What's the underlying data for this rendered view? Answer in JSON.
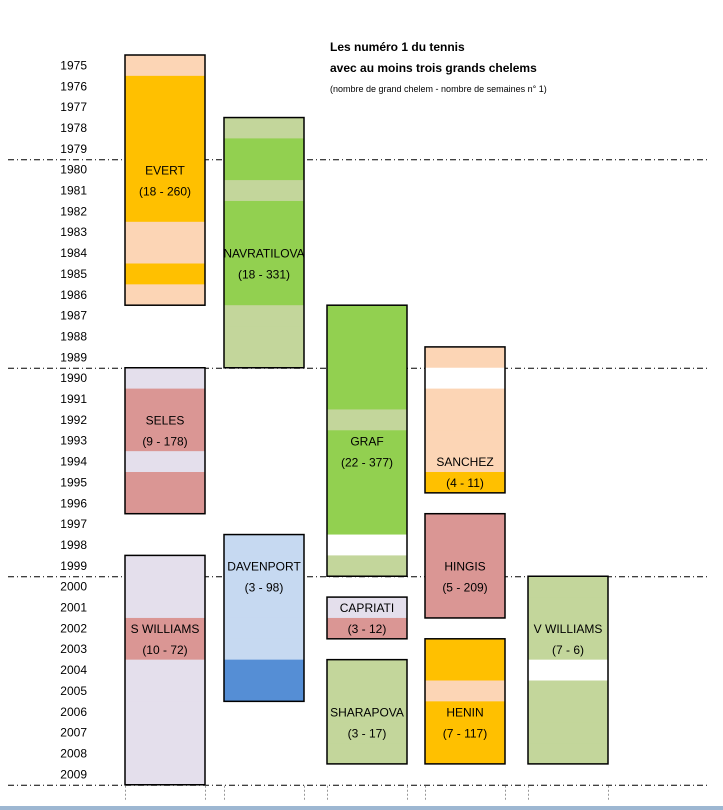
{
  "chart_data": {
    "type": "bar",
    "title": "Les numéro 1 du tennis",
    "subtitle": "avec au moins trois grands chelems",
    "note": "(nombre de grand chelem - nombre de semaines n° 1)",
    "years": [
      "1975",
      "1976",
      "1977",
      "1978",
      "1979",
      "1980",
      "1981",
      "1982",
      "1983",
      "1984",
      "1985",
      "1986",
      "1987",
      "1988",
      "1989",
      "1990",
      "1991",
      "1992",
      "1993",
      "1994",
      "1995",
      "1996",
      "1997",
      "1998",
      "1999",
      "2000",
      "2001",
      "2002",
      "2003",
      "2004",
      "2005",
      "2006",
      "2007",
      "2008",
      "2009"
    ],
    "decade_lines_after": [
      1979,
      1989,
      1999,
      2009
    ],
    "players": [
      {
        "name": "EVERT",
        "label": "(18 - 260)",
        "column": 0,
        "start": 1975,
        "end": 1986,
        "label_year": 1980,
        "segments": [
          {
            "year": 1975,
            "status": "light"
          },
          {
            "year": 1976,
            "status": "main"
          },
          {
            "year": 1977,
            "status": "main"
          },
          {
            "year": 1978,
            "status": "main"
          },
          {
            "year": 1979,
            "status": "main"
          },
          {
            "year": 1980,
            "status": "main"
          },
          {
            "year": 1981,
            "status": "main"
          },
          {
            "year": 1982,
            "status": "main"
          },
          {
            "year": 1983,
            "status": "light"
          },
          {
            "year": 1984,
            "status": "light"
          },
          {
            "year": 1985,
            "status": "main"
          },
          {
            "year": 1986,
            "status": "light"
          }
        ],
        "colors": {
          "main": "#ffc000",
          "light": "#fcd5b5"
        }
      },
      {
        "name": "NAVRATILOVA",
        "label": "(18 - 331)",
        "column": 1,
        "start": 1978,
        "end": 1989,
        "label_year": 1984,
        "segments": [
          {
            "year": 1978,
            "status": "light"
          },
          {
            "year": 1979,
            "status": "main"
          },
          {
            "year": 1980,
            "status": "main"
          },
          {
            "year": 1981,
            "status": "light"
          },
          {
            "year": 1982,
            "status": "main"
          },
          {
            "year": 1983,
            "status": "main"
          },
          {
            "year": 1984,
            "status": "main"
          },
          {
            "year": 1985,
            "status": "main"
          },
          {
            "year": 1986,
            "status": "main"
          },
          {
            "year": 1987,
            "status": "light"
          },
          {
            "year": 1988,
            "status": "light"
          },
          {
            "year": 1989,
            "status": "light"
          }
        ],
        "colors": {
          "main": "#92d050",
          "light": "#c3d69b"
        }
      },
      {
        "name": "GRAF",
        "label": "(22 - 377)",
        "column": 2,
        "start": 1987,
        "end": 1999,
        "label_year": 1993,
        "segments": [
          {
            "year": 1987,
            "status": "main"
          },
          {
            "year": 1988,
            "status": "main"
          },
          {
            "year": 1989,
            "status": "main"
          },
          {
            "year": 1990,
            "status": "main"
          },
          {
            "year": 1991,
            "status": "main"
          },
          {
            "year": 1992,
            "status": "light"
          },
          {
            "year": 1993,
            "status": "main"
          },
          {
            "year": 1994,
            "status": "main"
          },
          {
            "year": 1995,
            "status": "main"
          },
          {
            "year": 1996,
            "status": "main"
          },
          {
            "year": 1997,
            "status": "main"
          },
          {
            "year": 1998,
            "status": "none"
          },
          {
            "year": 1999,
            "status": "light"
          }
        ],
        "colors": {
          "main": "#92d050",
          "light": "#c3d69b"
        }
      },
      {
        "name": "SANCHEZ",
        "label": "(4 - 11)",
        "column": 3,
        "start": 1989,
        "end": 1995,
        "label_year": 1994,
        "segments": [
          {
            "year": 1989,
            "status": "light"
          },
          {
            "year": 1990,
            "status": "none"
          },
          {
            "year": 1991,
            "status": "light"
          },
          {
            "year": 1992,
            "status": "light"
          },
          {
            "year": 1993,
            "status": "light"
          },
          {
            "year": 1994,
            "status": "light"
          },
          {
            "year": 1995,
            "status": "main"
          }
        ],
        "colors": {
          "main": "#ffc000",
          "light": "#fcd5b5"
        }
      },
      {
        "name": "SELES",
        "label": "(9  - 178)",
        "column": 0,
        "start": 1990,
        "end": 1996,
        "label_year": 1992,
        "segments": [
          {
            "year": 1990,
            "status": "light"
          },
          {
            "year": 1991,
            "status": "main"
          },
          {
            "year": 1992,
            "status": "main"
          },
          {
            "year": 1993,
            "status": "main"
          },
          {
            "year": 1994,
            "status": "light"
          },
          {
            "year": 1995,
            "status": "main"
          },
          {
            "year": 1996,
            "status": "main"
          }
        ],
        "colors": {
          "main": "#da9694",
          "light": "#e4dfec"
        }
      },
      {
        "name": "DAVENPORT",
        "label": "(3 - 98)",
        "column": 1,
        "start": 1998,
        "end": 2005,
        "label_year": 1999,
        "segments": [
          {
            "year": 1998,
            "status": "light"
          },
          {
            "year": 1999,
            "status": "light"
          },
          {
            "year": 2000,
            "status": "light"
          },
          {
            "year": 2001,
            "status": "light"
          },
          {
            "year": 2002,
            "status": "light"
          },
          {
            "year": 2003,
            "status": "light"
          },
          {
            "year": 2004,
            "status": "main"
          },
          {
            "year": 2005,
            "status": "main"
          }
        ],
        "colors": {
          "main": "#558ed5",
          "light": "#c6d9f1"
        }
      },
      {
        "name": "HINGIS",
        "label": "(5 - 209)",
        "column": 3,
        "start": 1997,
        "end": 2001,
        "label_year": 1999,
        "segments": [
          {
            "year": 1997,
            "status": "main"
          },
          {
            "year": 1998,
            "status": "main"
          },
          {
            "year": 1999,
            "status": "main"
          },
          {
            "year": 2000,
            "status": "main"
          },
          {
            "year": 2001,
            "status": "main"
          }
        ],
        "colors": {
          "main": "#da9694",
          "light": "#e4dfec"
        }
      },
      {
        "name": "S WILLIAMS",
        "label": "(10 - 72)",
        "column": 0,
        "start": 1999,
        "end": 2009,
        "label_year": 2002,
        "segments": [
          {
            "year": 1999,
            "status": "light"
          },
          {
            "year": 2000,
            "status": "light"
          },
          {
            "year": 2001,
            "status": "light"
          },
          {
            "year": 2002,
            "status": "main"
          },
          {
            "year": 2003,
            "status": "main"
          },
          {
            "year": 2004,
            "status": "light"
          },
          {
            "year": 2005,
            "status": "light"
          },
          {
            "year": 2006,
            "status": "light"
          },
          {
            "year": 2007,
            "status": "light"
          },
          {
            "year": 2008,
            "status": "light"
          },
          {
            "year": 2009,
            "status": "light"
          }
        ],
        "colors": {
          "main": "#da9694",
          "light": "#e4dfec"
        }
      },
      {
        "name": "CAPRIATI",
        "label": "(3 - 12)",
        "column": 2,
        "start": 2001,
        "end": 2002,
        "label_year": 2001,
        "segments": [
          {
            "year": 2001,
            "status": "light"
          },
          {
            "year": 2002,
            "status": "main"
          }
        ],
        "colors": {
          "main": "#da9694",
          "light": "#e4dfec"
        }
      },
      {
        "name": "SHARAPOVA",
        "label": "(3 - 17)",
        "column": 2,
        "start": 2004,
        "end": 2008,
        "label_year": 2006,
        "segments": [
          {
            "year": 2004,
            "status": "light"
          },
          {
            "year": 2005,
            "status": "light"
          },
          {
            "year": 2006,
            "status": "light"
          },
          {
            "year": 2007,
            "status": "light"
          },
          {
            "year": 2008,
            "status": "light"
          }
        ],
        "colors": {
          "main": "#c3d69b",
          "light": "#c3d69b"
        }
      },
      {
        "name": "HENIN",
        "label": "(7 - 117)",
        "column": 3,
        "start": 2003,
        "end": 2008,
        "label_year": 2006,
        "segments": [
          {
            "year": 2003,
            "status": "main"
          },
          {
            "year": 2004,
            "status": "main"
          },
          {
            "year": 2005,
            "status": "light"
          },
          {
            "year": 2006,
            "status": "main"
          },
          {
            "year": 2007,
            "status": "main"
          },
          {
            "year": 2008,
            "status": "main"
          }
        ],
        "colors": {
          "main": "#ffc000",
          "light": "#fcd5b5"
        }
      },
      {
        "name": "V WILLIAMS",
        "label": "(7 - 6)",
        "column": 4,
        "start": 2000,
        "end": 2008,
        "label_year": 2002,
        "segments": [
          {
            "year": 2000,
            "status": "light"
          },
          {
            "year": 2001,
            "status": "light"
          },
          {
            "year": 2002,
            "status": "light"
          },
          {
            "year": 2003,
            "status": "light"
          },
          {
            "year": 2004,
            "status": "none"
          },
          {
            "year": 2005,
            "status": "light"
          },
          {
            "year": 2006,
            "status": "light"
          },
          {
            "year": 2007,
            "status": "light"
          },
          {
            "year": 2008,
            "status": "light"
          }
        ],
        "colors": {
          "main": "#c3d69b",
          "light": "#c3d69b"
        }
      }
    ]
  }
}
